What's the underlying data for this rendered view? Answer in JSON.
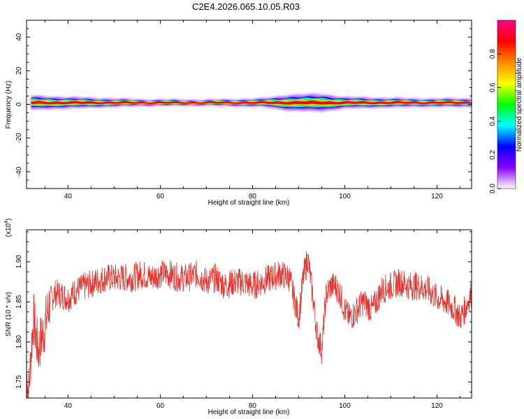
{
  "figure": {
    "title": "C2E4.2026.065.10.05.R03"
  },
  "chart_data": [
    {
      "type": "heatmap",
      "title": "C2E4.2026.065.10.05.R03",
      "xlabel": "Height of straight line (km)",
      "ylabel": "Frequency (Hz)",
      "xlim": [
        31,
        127.5
      ],
      "ylim": [
        -50,
        50
      ],
      "xticks": [
        40,
        60,
        80,
        100,
        120
      ],
      "yticks": [
        -40,
        -20,
        0,
        20,
        40
      ],
      "colorbar": {
        "label": "Normalized spectral amplitude",
        "range": [
          0,
          1
        ],
        "ticks": [
          "0.0",
          "0.2",
          "0.4",
          "0.6",
          "0.8"
        ],
        "colormap": [
          "#ffffff",
          "#8800ff",
          "#0000ff",
          "#00ffff",
          "#00ff00",
          "#ffff00",
          "#ff8800",
          "#ff0000",
          "#ff0088"
        ]
      },
      "band": {
        "center_frequency_hz": 1,
        "spread_hz": [
          {
            "x": 31,
            "halfwidth": 4
          },
          {
            "x": 40,
            "halfwidth": 3
          },
          {
            "x": 55,
            "halfwidth": 1.5
          },
          {
            "x": 70,
            "halfwidth": 1.2
          },
          {
            "x": 82,
            "halfwidth": 2
          },
          {
            "x": 88,
            "halfwidth": 4.5
          },
          {
            "x": 95,
            "halfwidth": 5
          },
          {
            "x": 100,
            "halfwidth": 3
          },
          {
            "x": 108,
            "halfwidth": 2.5
          },
          {
            "x": 115,
            "halfwidth": 2
          },
          {
            "x": 127.5,
            "halfwidth": 2
          }
        ]
      },
      "grid": false
    },
    {
      "type": "line",
      "xlabel": "Height of straight line (km)",
      "ylabel": "SNR (10 * v/v)",
      "y_multiplier": "(x10^4)",
      "xlim": [
        31,
        127.5
      ],
      "ylim": [
        1.73,
        1.94
      ],
      "xticks": [
        40,
        60,
        80,
        100,
        120
      ],
      "yticks": [
        1.75,
        1.8,
        1.85,
        1.9
      ],
      "ytick_labels": [
        "1.75",
        "1.80",
        "1.85",
        "1.90"
      ],
      "series": [
        {
          "color": "#e8302a",
          "x": [
            31,
            31.5,
            32,
            32.5,
            33,
            33.5,
            34,
            35,
            36,
            37,
            38,
            40,
            42,
            44,
            46,
            48,
            50,
            52,
            54,
            56,
            58,
            60,
            62,
            64,
            66,
            68,
            70,
            72,
            74,
            76,
            78,
            80,
            82,
            84,
            86,
            88,
            89,
            90,
            91,
            92,
            93,
            94,
            95,
            96,
            97,
            98,
            99,
            100,
            101,
            102,
            104,
            106,
            108,
            110,
            112,
            114,
            116,
            118,
            120,
            122,
            124,
            125,
            126,
            127,
            127.5
          ],
          "y": [
            1.76,
            1.74,
            1.79,
            1.83,
            1.81,
            1.79,
            1.8,
            1.82,
            1.85,
            1.86,
            1.86,
            1.855,
            1.865,
            1.87,
            1.875,
            1.88,
            1.88,
            1.88,
            1.88,
            1.885,
            1.88,
            1.885,
            1.885,
            1.88,
            1.88,
            1.885,
            1.875,
            1.88,
            1.87,
            1.875,
            1.875,
            1.87,
            1.875,
            1.88,
            1.885,
            1.88,
            1.855,
            1.83,
            1.88,
            1.905,
            1.86,
            1.81,
            1.79,
            1.86,
            1.87,
            1.87,
            1.86,
            1.84,
            1.83,
            1.835,
            1.85,
            1.84,
            1.865,
            1.87,
            1.875,
            1.87,
            1.87,
            1.865,
            1.855,
            1.85,
            1.84,
            1.83,
            1.84,
            1.855,
            1.86
          ]
        }
      ]
    }
  ]
}
